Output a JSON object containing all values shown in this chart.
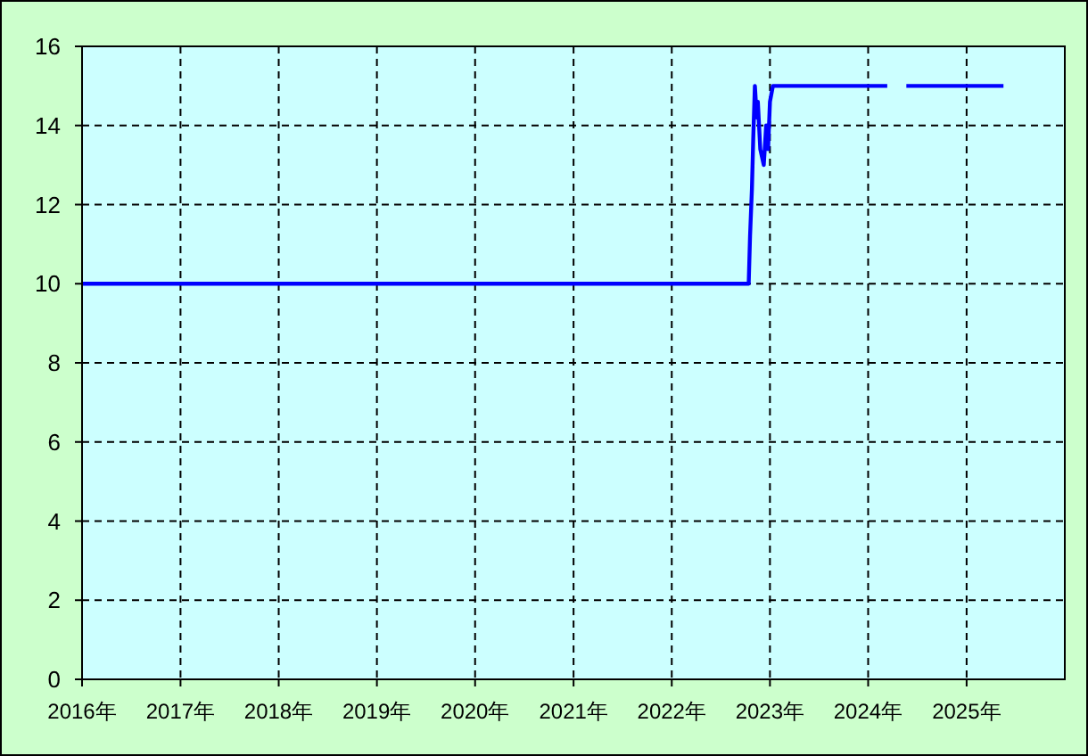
{
  "chart_data": {
    "type": "line",
    "grid": true,
    "line_style": "solid",
    "xlim": [
      "2016-01-01",
      "2026-01-01"
    ],
    "ylim": [
      0,
      16
    ],
    "yticks": [
      0,
      2,
      4,
      6,
      8,
      10,
      12,
      14,
      16
    ],
    "xticks": [
      {
        "value": "2016-01-01",
        "label": "2016年"
      },
      {
        "value": "2017-01-01",
        "label": "2017年"
      },
      {
        "value": "2018-01-01",
        "label": "2018年"
      },
      {
        "value": "2019-01-01",
        "label": "2019年"
      },
      {
        "value": "2020-01-01",
        "label": "2020年"
      },
      {
        "value": "2021-01-01",
        "label": "2021年"
      },
      {
        "value": "2022-01-01",
        "label": "2022年"
      },
      {
        "value": "2023-01-01",
        "label": "2023年"
      },
      {
        "value": "2024-01-01",
        "label": "2024年"
      },
      {
        "value": "2025-01-01",
        "label": "2025年"
      }
    ],
    "series": [
      {
        "color": "#0000ff",
        "x": [
          "2016-01-01",
          "2022-10-14",
          "2022-10-19",
          "2022-10-26",
          "2022-10-31",
          "2022-11-06",
          "2022-11-13",
          "2022-11-17",
          "2022-11-26",
          "2022-12-09",
          "2022-12-18",
          "2022-12-25",
          "2023-01-01",
          "2023-01-12",
          "2024-03-12",
          "2024-04-15",
          "2024-05-22",
          "2025-05-18"
        ],
        "values": [
          10,
          10,
          11.2,
          12.4,
          13.7,
          15,
          14.2,
          14.6,
          13.4,
          13,
          14,
          13.4,
          14.6,
          15,
          15,
          null,
          15,
          15
        ]
      }
    ]
  }
}
